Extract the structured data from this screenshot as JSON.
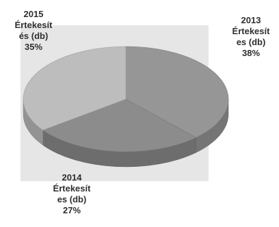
{
  "chart_data": {
    "type": "pie",
    "title": "",
    "slices": [
      {
        "label_year": "2013",
        "label_line1": "Értekesít",
        "label_line2": "es (db)",
        "value": 38,
        "pct_text": "38%",
        "color": "#969696"
      },
      {
        "label_year": "2014",
        "label_line1": "Értekesít",
        "label_line2": "es (db)",
        "value": 27,
        "pct_text": "27%",
        "color": "#8c8c8c"
      },
      {
        "label_year": "2015",
        "label_line1": "Értekesít",
        "label_line2": "és (db)",
        "value": 35,
        "pct_text": "35%",
        "color": "#bdbdbd"
      }
    ],
    "legend": false,
    "style": "3d"
  }
}
